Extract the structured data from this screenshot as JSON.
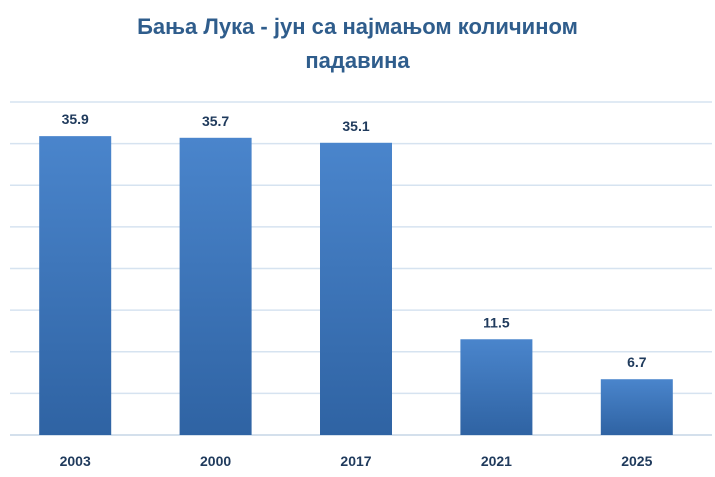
{
  "chart_data": {
    "type": "bar",
    "title_line1": "Бања Лука - јун са најмањом количином",
    "title_line2": "падавина",
    "categories": [
      "2003",
      "2000",
      "2017",
      "2021",
      "2025"
    ],
    "values": [
      35.9,
      35.7,
      35.1,
      11.5,
      6.7
    ],
    "value_labels": [
      "35.9",
      "35.7",
      "35.1",
      "11.5",
      "6.7"
    ],
    "ylim": [
      0,
      40
    ],
    "grid": true,
    "legend": "none",
    "bar_color": "#3a6fb0",
    "bar_color_top": "#4a85cc",
    "grid_color": "#d6e3f0",
    "text_color": "#1f3a5c"
  }
}
